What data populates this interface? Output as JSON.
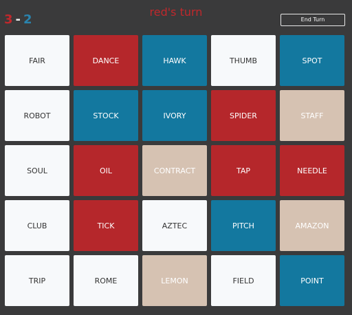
{
  "header": {
    "score": {
      "red": 3,
      "separator": "-",
      "blue": 2
    },
    "turn": "red's turn",
    "end_turn_button": "End Turn"
  },
  "board": {
    "cards": [
      {
        "word": "FAIR",
        "team": "unrevealed"
      },
      {
        "word": "DANCE",
        "team": "red"
      },
      {
        "word": "HAWK",
        "team": "blue"
      },
      {
        "word": "THUMB",
        "team": "unrevealed"
      },
      {
        "word": "SPOT",
        "team": "blue"
      },
      {
        "word": "ROBOT",
        "team": "unrevealed"
      },
      {
        "word": "STOCK",
        "team": "blue"
      },
      {
        "word": "IVORY",
        "team": "blue"
      },
      {
        "word": "SPIDER",
        "team": "red"
      },
      {
        "word": "STAFF",
        "team": "neutral"
      },
      {
        "word": "SOUL",
        "team": "unrevealed"
      },
      {
        "word": "OIL",
        "team": "red"
      },
      {
        "word": "CONTRACT",
        "team": "neutral"
      },
      {
        "word": "TAP",
        "team": "red"
      },
      {
        "word": "NEEDLE",
        "team": "red"
      },
      {
        "word": "CLUB",
        "team": "unrevealed"
      },
      {
        "word": "TICK",
        "team": "red"
      },
      {
        "word": "AZTEC",
        "team": "unrevealed"
      },
      {
        "word": "PITCH",
        "team": "blue"
      },
      {
        "word": "AMAZON",
        "team": "neutral"
      },
      {
        "word": "TRIP",
        "team": "unrevealed"
      },
      {
        "word": "ROME",
        "team": "unrevealed"
      },
      {
        "word": "LEMON",
        "team": "neutral"
      },
      {
        "word": "FIELD",
        "team": "unrevealed"
      },
      {
        "word": "POINT",
        "team": "blue"
      }
    ]
  }
}
